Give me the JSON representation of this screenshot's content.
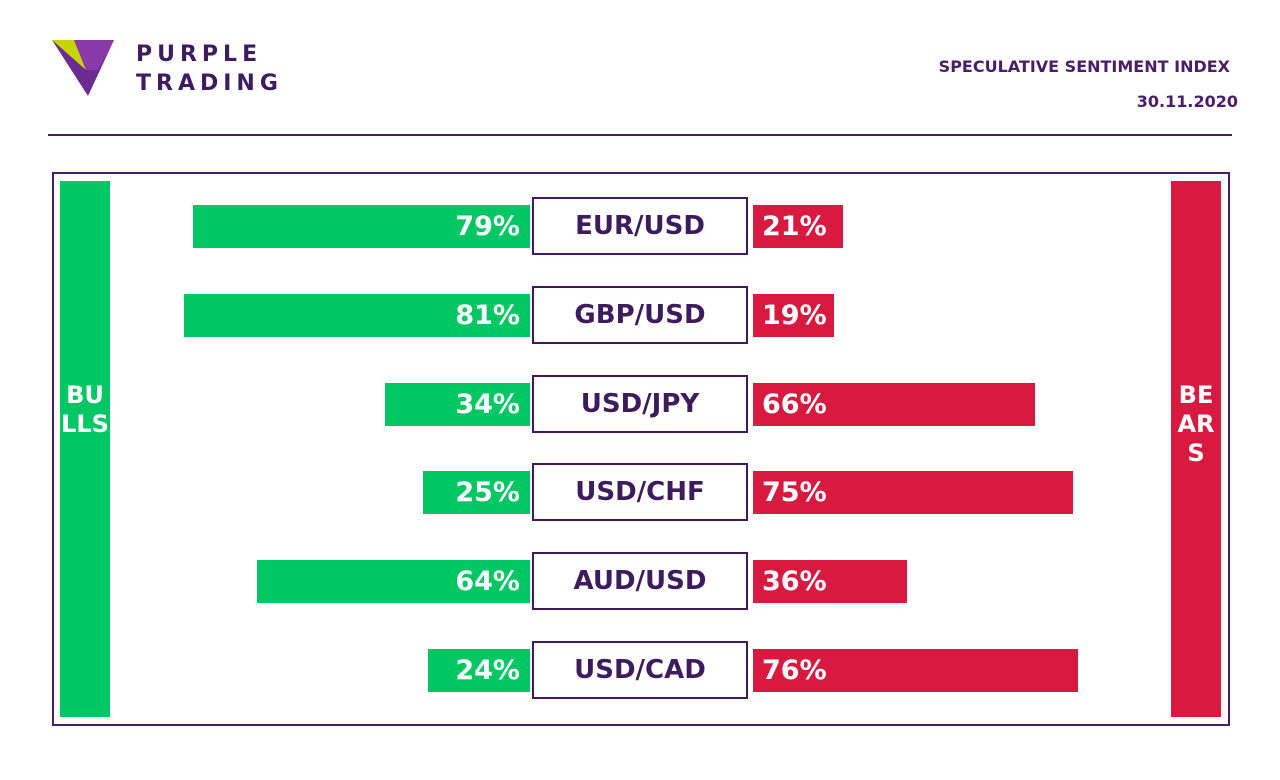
{
  "brand": {
    "line1": "PURPLE",
    "line2": "TRADING",
    "colors": {
      "purple": "#6b2b8f",
      "dark_purple": "#3d1c5e",
      "lime": "#c8d400"
    }
  },
  "header": {
    "title": "SPECULATIVE SENTIMENT INDEX",
    "date": "30.11.2020"
  },
  "sides": {
    "bulls_label": "BULLS",
    "bears_label": "BEARS"
  },
  "colors": {
    "bull": "#00c764",
    "bear": "#d81a40",
    "frame": "#4a1d6b",
    "text": "#3d1c5e"
  },
  "chart_data": {
    "type": "bar",
    "categories": [
      "EUR/USD",
      "GBP/USD",
      "USD/JPY",
      "USD/CHF",
      "AUD/USD",
      "USD/CAD"
    ],
    "series": [
      {
        "name": "BULLS",
        "values": [
          79,
          81,
          34,
          25,
          64,
          24
        ],
        "labels": [
          "79%",
          "81%",
          "34%",
          "25%",
          "64%",
          "24%"
        ]
      },
      {
        "name": "BEARS",
        "values": [
          21,
          19,
          66,
          75,
          36,
          76
        ],
        "labels": [
          "21%",
          "19%",
          "66%",
          "75%",
          "36%",
          "76%"
        ]
      }
    ],
    "unit": "%",
    "ylim": [
      0,
      100
    ]
  }
}
